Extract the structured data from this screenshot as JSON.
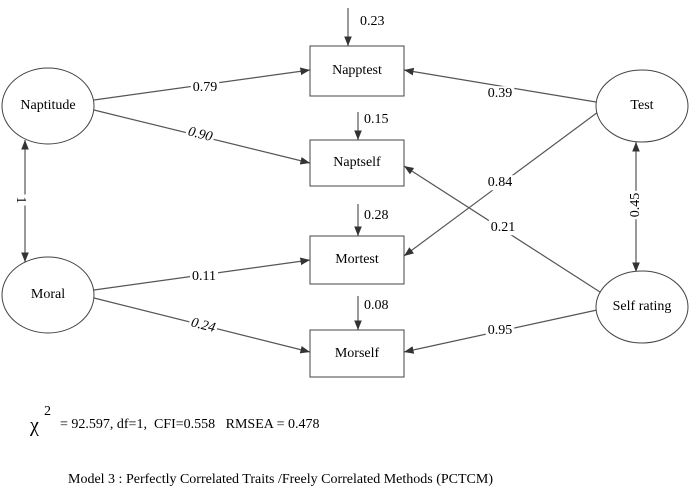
{
  "nodes": [
    {
      "label": "Naptitude"
    },
    {
      "label": "Moral"
    },
    {
      "label": "Test"
    },
    {
      "label": "Self rating"
    },
    {
      "label": "Napptest"
    },
    {
      "label": "Naptself"
    },
    {
      "label": "Mortest"
    },
    {
      "label": "Morself"
    }
  ],
  "edges": [
    {
      "label": "0.79"
    },
    {
      "label": "0.90"
    },
    {
      "label": "0.39"
    },
    {
      "label": "0.84"
    },
    {
      "label": "0.21"
    },
    {
      "label": "0.95"
    },
    {
      "label": "0.11"
    },
    {
      "label": "0.24"
    },
    {
      "label": "1"
    },
    {
      "label": "0.45"
    }
  ],
  "errors": [
    {
      "label": "0.23"
    },
    {
      "label": "0.15"
    },
    {
      "label": "0.28"
    },
    {
      "label": "0.08"
    }
  ],
  "fit": {
    "symbol": "χ",
    "superscript": "2",
    "text": "= 92.597, df=1,  CFI=0.558   RMSEA = 0.478"
  },
  "caption": "Model 3 : Perfectly Correlated Traits /Freely Correlated Methods (PCTCM)"
}
